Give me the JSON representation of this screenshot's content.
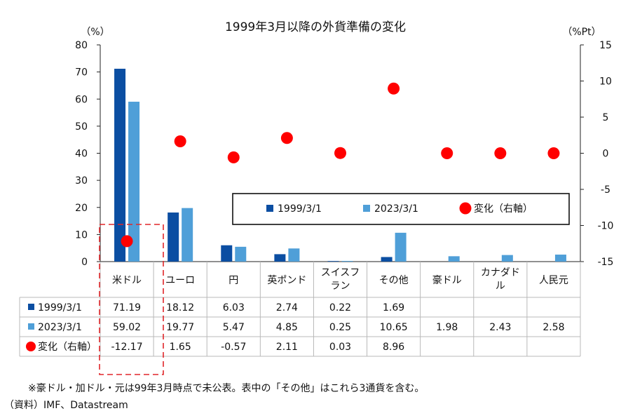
{
  "chart_data": {
    "type": "bar",
    "title": "1999年3月以降の外貨準備の変化",
    "left_unit": "（%）",
    "right_unit": "（%Pt）",
    "categories": [
      "米ドル",
      "ユーロ",
      "円",
      "英ポンド",
      "スイスフラン",
      "その他",
      "豪ドル",
      "カナダドル",
      "人民元"
    ],
    "category_lines": [
      [
        "米ドル"
      ],
      [
        "ユーロ"
      ],
      [
        "円"
      ],
      [
        "英ポンド"
      ],
      [
        "スイスフ",
        "ラン"
      ],
      [
        "その他"
      ],
      [
        "豪ドル"
      ],
      [
        "カナダド",
        "ル"
      ],
      [
        "人民元"
      ]
    ],
    "ylim_left": [
      0,
      80
    ],
    "yticks_left": [
      "0",
      "10",
      "20",
      "30",
      "40",
      "50",
      "60",
      "70",
      "80"
    ],
    "ylim_right": [
      -15,
      15
    ],
    "yticks_right": [
      "-15",
      "-10",
      "-5",
      "0",
      "5",
      "10",
      "15"
    ],
    "series": [
      {
        "name": "1999/3/1",
        "kind": "bar",
        "axis": "left",
        "color": "#0b4ea2",
        "values": [
          71.19,
          18.12,
          6.03,
          2.74,
          0.22,
          1.69,
          null,
          null,
          null
        ],
        "labels": [
          "71.19",
          "18.12",
          "6.03",
          "2.74",
          "0.22",
          "1.69",
          "",
          "",
          ""
        ]
      },
      {
        "name": "2023/3/1",
        "kind": "bar",
        "axis": "left",
        "color": "#4f9fd8",
        "values": [
          59.02,
          19.77,
          5.47,
          4.85,
          0.25,
          10.65,
          1.98,
          2.43,
          2.58
        ],
        "labels": [
          "59.02",
          "19.77",
          "5.47",
          "4.85",
          "0.25",
          "10.65",
          "1.98",
          "2.43",
          "2.58"
        ]
      },
      {
        "name": "変化（右軸）",
        "kind": "dot",
        "axis": "right",
        "color": "#ff0000",
        "values": [
          -12.17,
          1.65,
          -0.57,
          2.11,
          0.03,
          8.96,
          0,
          0,
          0
        ],
        "labels": [
          "-12.17",
          "1.65",
          "-0.57",
          "2.11",
          "0.03",
          "8.96",
          "",
          "",
          ""
        ]
      }
    ],
    "legend": [
      "1999/3/1",
      "2023/3/1",
      "変化（右軸）"
    ]
  },
  "footnote": "※豪ドル・加ドル・元は99年3月時点で未公表。表中の「その他」はこれら3通貨を含む。",
  "source": "（資料）IMF、Datastream"
}
